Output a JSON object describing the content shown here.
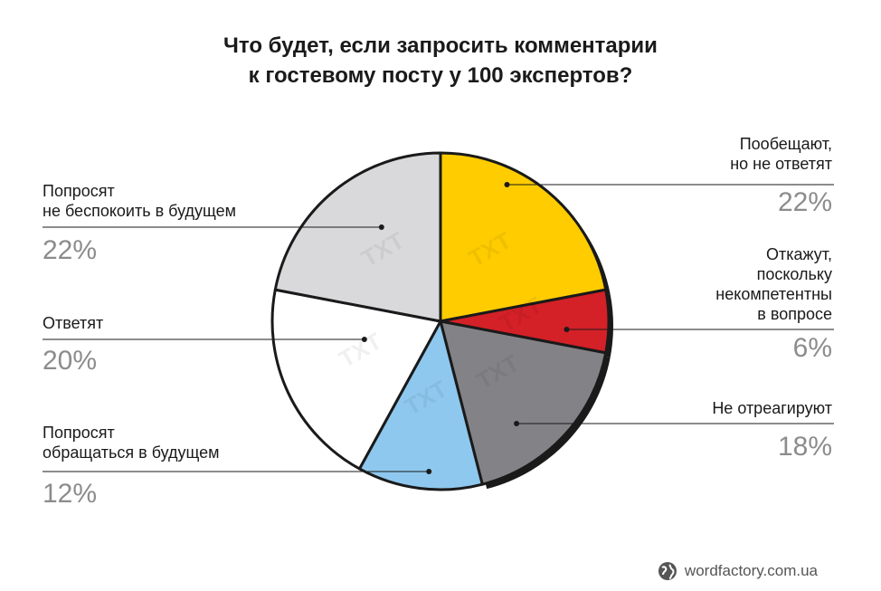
{
  "title": {
    "line1": "Что будет, если запросить комментарии",
    "line2": "к гостевому посту у 100 экспертов?"
  },
  "chart_data": {
    "type": "pie",
    "slices": [
      {
        "label_lines": [
          "Пообещают,",
          "но не ответят"
        ],
        "value": 22,
        "display": "22%",
        "color": "#ffcc00"
      },
      {
        "label_lines": [
          "Откажут,",
          "поскольку",
          "некомпетентны",
          "в вопросе"
        ],
        "value": 6,
        "display": "6%",
        "color": "#d42027"
      },
      {
        "label_lines": [
          "Не отреагируют"
        ],
        "value": 18,
        "display": "18%",
        "color": "#838387"
      },
      {
        "label_lines": [
          "Попросят",
          "обращаться в будущем"
        ],
        "value": 12,
        "display": "12%",
        "color": "#8ec8ee"
      },
      {
        "label_lines": [
          "Ответят"
        ],
        "value": 20,
        "display": "20%",
        "color": "#ffffff"
      },
      {
        "label_lines": [
          "Попросят",
          "не беспокоить в будущем"
        ],
        "value": 22,
        "display": "22%",
        "color": "#d9d9db"
      }
    ],
    "watermark": "TXT"
  },
  "footer": {
    "site": "wordfactory.com.ua"
  }
}
